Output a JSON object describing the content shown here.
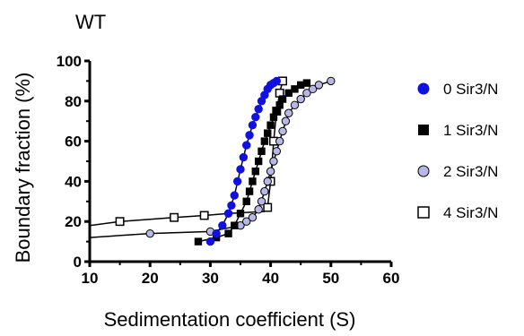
{
  "chart_data": {
    "type": "scatter",
    "title": "WT",
    "xlabel": "Sedimentation coefficient (S)",
    "ylabel": "Boundary fraction (%)",
    "xlim": [
      10,
      60
    ],
    "ylim": [
      0,
      100
    ],
    "xticks": [
      "10",
      "20",
      "30",
      "40",
      "50",
      "60"
    ],
    "yticks": [
      "0",
      "20",
      "40",
      "60",
      "80",
      "100"
    ],
    "grid": false,
    "legend_position": "right",
    "series": [
      {
        "name": "0 Sir3/N",
        "marker": "circle-filled",
        "color": "#1010e0",
        "x": [
          30,
          31,
          32,
          33,
          33.5,
          34,
          34.5,
          35,
          35.5,
          36,
          36.5,
          37,
          37.5,
          38,
          38.5,
          39,
          39.5,
          40,
          40.5,
          41
        ],
        "y": [
          10,
          14,
          18,
          24,
          28,
          33,
          40,
          46,
          52,
          58,
          63,
          68,
          72,
          76,
          80,
          83,
          86,
          88,
          89,
          90
        ],
        "fit_x": [
          30,
          31,
          32,
          33,
          34,
          35,
          36,
          37,
          38,
          39,
          40,
          41
        ],
        "fit_y": [
          10,
          14,
          18,
          24,
          33,
          46,
          58,
          68,
          76,
          83,
          88,
          90
        ]
      },
      {
        "name": "1 Sir3/N",
        "marker": "square-filled",
        "color": "#000000",
        "x": [
          28,
          31,
          33,
          34,
          35,
          36,
          36.5,
          37,
          37.5,
          38,
          38.5,
          39,
          39.5,
          40,
          40.5,
          41,
          41.5,
          42,
          43,
          44,
          45,
          46
        ],
        "y": [
          10,
          12,
          14,
          18,
          24,
          30,
          35,
          40,
          45,
          50,
          55,
          60,
          64,
          68,
          72,
          75,
          78,
          81,
          84,
          86,
          88,
          89
        ],
        "fit_x": [
          28,
          31,
          33,
          34,
          35,
          36,
          37,
          38,
          39,
          40,
          41,
          42,
          44,
          46
        ],
        "fit_y": [
          10,
          12,
          14,
          18,
          24,
          30,
          40,
          50,
          60,
          68,
          75,
          81,
          86,
          89
        ]
      },
      {
        "name": "2 Sir3/N",
        "marker": "circle-open-lavender",
        "color": "#b8b8e6",
        "x": [
          20,
          30,
          35,
          36,
          37,
          38,
          38.5,
          39,
          39.5,
          40,
          40.5,
          41,
          41.5,
          42,
          42.5,
          43,
          44,
          45,
          46,
          47,
          48,
          50
        ],
        "y": [
          14,
          15,
          18,
          20,
          22,
          26,
          30,
          35,
          40,
          45,
          50,
          55,
          60,
          65,
          70,
          74,
          78,
          81,
          84,
          86,
          88,
          90
        ],
        "fit_x": [
          10,
          20,
          30,
          35,
          37,
          38,
          39,
          40,
          41,
          42,
          43,
          44,
          46,
          48,
          50
        ],
        "fit_y": [
          12,
          14,
          15,
          18,
          22,
          26,
          35,
          45,
          55,
          65,
          74,
          78,
          84,
          88,
          90
        ]
      },
      {
        "name": "4 Sir3/N",
        "marker": "square-open",
        "color": "#000000",
        "x": [
          15,
          24,
          29,
          39.5,
          40,
          40.5,
          41,
          41.5,
          42
        ],
        "y": [
          20,
          22,
          23,
          27,
          40,
          60,
          75,
          84,
          90
        ],
        "fit_x": [
          10,
          15,
          24,
          29,
          33,
          39,
          39.5,
          40,
          40.5,
          41,
          41.5,
          42
        ],
        "fit_y": [
          18,
          20,
          22,
          23,
          24,
          25,
          27,
          40,
          60,
          75,
          84,
          90
        ]
      }
    ]
  }
}
